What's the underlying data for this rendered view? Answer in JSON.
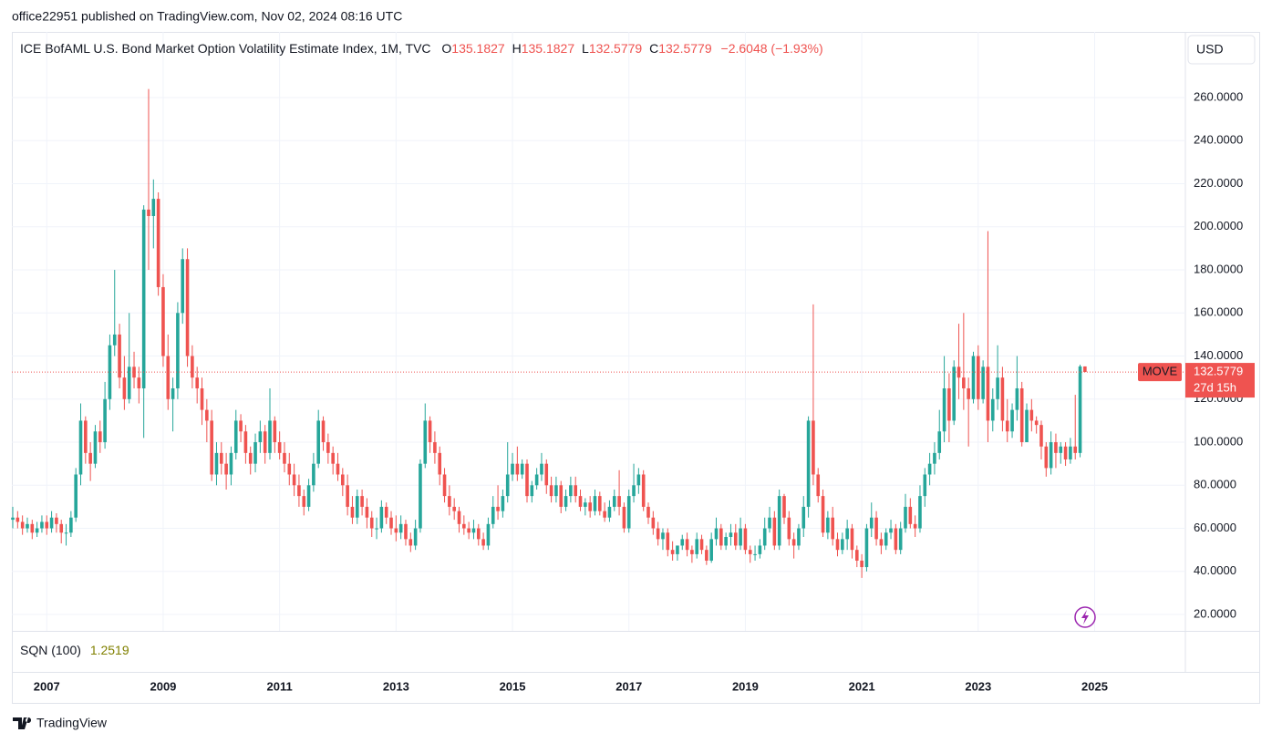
{
  "header": {
    "published": "office22951 published on TradingView.com, Nov 02, 2024 08:16 UTC"
  },
  "footer": {
    "brand": "TradingView"
  },
  "currency": "USD",
  "chart_data": {
    "type": "candlestick",
    "title": "ICE BofAML U.S. Bond Market Option Volatility Estimate Index, 1M, TVC",
    "ohlc_labels": [
      "O",
      "H",
      "L",
      "C"
    ],
    "change": "−2.6048 (−1.93%)",
    "symbol_tag": "MOVE",
    "countdown": "27d 15h",
    "up_color": "#26a69a",
    "down_color": "#ef5350",
    "grid": true,
    "series": {
      "name": "MOVE",
      "open": [
        64,
        65,
        63,
        60,
        62,
        58,
        60,
        63,
        60,
        65,
        62,
        58,
        58,
        65,
        85,
        110,
        95,
        90,
        105,
        100,
        120,
        145,
        150,
        130,
        120,
        135,
        130,
        125,
        208,
        205,
        213,
        172,
        140,
        120,
        125,
        160,
        185,
        140,
        130,
        125,
        115,
        110,
        85,
        95,
        90,
        85,
        95,
        110,
        105,
        95,
        90,
        100,
        105,
        95,
        110,
        100,
        95,
        90,
        85,
        80,
        75,
        70,
        80,
        90,
        110,
        100,
        95,
        90,
        85,
        80,
        70,
        65,
        75,
        70,
        65,
        60,
        60,
        70,
        65,
        60,
        58,
        62,
        55,
        52,
        60,
        90,
        110,
        100,
        95,
        85,
        75,
        70,
        68,
        62,
        60,
        58,
        60,
        55,
        52,
        62,
        70,
        68,
        75,
        85,
        90,
        85,
        90,
        75,
        80,
        85,
        90,
        80,
        75,
        80,
        70,
        75,
        80,
        75,
        70,
        72,
        68,
        75,
        68,
        65,
        70,
        75,
        70,
        60,
        75,
        80,
        85,
        70,
        65,
        60,
        55,
        58,
        50,
        48,
        52,
        55,
        50,
        48,
        55,
        50,
        45,
        55,
        60,
        52,
        56,
        58,
        52,
        60,
        50,
        48,
        48,
        52,
        60,
        65,
        52,
        75,
        65,
        55,
        52,
        60,
        70,
        110,
        85,
        75,
        58,
        65,
        55,
        50,
        55,
        60,
        50,
        45,
        42,
        60,
        65,
        55,
        52,
        58,
        60,
        50,
        60,
        70,
        62,
        60,
        75,
        85,
        90,
        95,
        105,
        125,
        110,
        135,
        130,
        125,
        120,
        140,
        120,
        135,
        110,
        120,
        130,
        110,
        105,
        115,
        125,
        100,
        115,
        110,
        108,
        98,
        88,
        100,
        95,
        98,
        92,
        98,
        95,
        135.1827
      ],
      "high": [
        70,
        68,
        66,
        65,
        64,
        63,
        66,
        66,
        68,
        67,
        64,
        62,
        68,
        88,
        118,
        112,
        100,
        108,
        110,
        128,
        150,
        180,
        155,
        140,
        160,
        142,
        135,
        210,
        264,
        222,
        216,
        178,
        150,
        130,
        165,
        190,
        190,
        145,
        135,
        130,
        120,
        115,
        100,
        100,
        95,
        98,
        115,
        113,
        108,
        98,
        104,
        110,
        108,
        125,
        112,
        105,
        100,
        95,
        90,
        85,
        78,
        83,
        95,
        115,
        112,
        104,
        98,
        95,
        88,
        85,
        75,
        78,
        78,
        74,
        68,
        65,
        73,
        72,
        68,
        66,
        66,
        64,
        58,
        64,
        92,
        118,
        112,
        105,
        98,
        88,
        80,
        74,
        70,
        66,
        63,
        64,
        62,
        58,
        65,
        75,
        80,
        78,
        100,
        95,
        98,
        92,
        92,
        82,
        88,
        95,
        92,
        84,
        84,
        82,
        78,
        84,
        84,
        78,
        74,
        75,
        78,
        77,
        72,
        73,
        78,
        87,
        72,
        78,
        90,
        88,
        87,
        72,
        68,
        63,
        60,
        60,
        54,
        52,
        57,
        58,
        52,
        58,
        57,
        52,
        58,
        65,
        62,
        58,
        62,
        62,
        65,
        62,
        52,
        52,
        55,
        65,
        70,
        68,
        78,
        76,
        68,
        58,
        62,
        75,
        112,
        164,
        88,
        78,
        68,
        70,
        58,
        58,
        64,
        62,
        52,
        48,
        62,
        72,
        68,
        58,
        60,
        64,
        62,
        63,
        76,
        74,
        66,
        80,
        88,
        95,
        100,
        115,
        140,
        132,
        138,
        155,
        160,
        130,
        142,
        145,
        138,
        198,
        125,
        145,
        135,
        120,
        118,
        140,
        128,
        118,
        120,
        112,
        110,
        100,
        105,
        104,
        100,
        100,
        102,
        122,
        136,
        135.1827
      ],
      "low": [
        60,
        60,
        57,
        58,
        55,
        56,
        58,
        57,
        58,
        58,
        53,
        52,
        56,
        63,
        80,
        90,
        82,
        88,
        95,
        97,
        115,
        140,
        125,
        115,
        118,
        125,
        118,
        102,
        180,
        190,
        168,
        135,
        115,
        105,
        120,
        155,
        135,
        125,
        118,
        108,
        100,
        82,
        80,
        85,
        78,
        80,
        92,
        100,
        90,
        85,
        86,
        95,
        90,
        92,
        95,
        92,
        86,
        80,
        75,
        70,
        66,
        68,
        77,
        88,
        96,
        90,
        85,
        82,
        75,
        66,
        62,
        62,
        66,
        60,
        56,
        55,
        58,
        62,
        57,
        54,
        55,
        52,
        49,
        50,
        58,
        88,
        95,
        90,
        80,
        72,
        66,
        64,
        58,
        57,
        55,
        55,
        52,
        50,
        50,
        60,
        64,
        65,
        72,
        82,
        82,
        83,
        72,
        72,
        78,
        82,
        76,
        72,
        72,
        67,
        68,
        72,
        72,
        68,
        66,
        65,
        66,
        66,
        63,
        63,
        68,
        66,
        58,
        58,
        72,
        76,
        68,
        62,
        57,
        52,
        50,
        47,
        45,
        45,
        50,
        47,
        44,
        46,
        48,
        43,
        44,
        52,
        50,
        50,
        52,
        50,
        50,
        48,
        44,
        45,
        46,
        50,
        58,
        50,
        50,
        62,
        52,
        46,
        50,
        56,
        65,
        80,
        72,
        56,
        55,
        52,
        47,
        48,
        50,
        46,
        42,
        37,
        40,
        56,
        52,
        48,
        50,
        55,
        48,
        48,
        58,
        60,
        56,
        58,
        70,
        80,
        85,
        92,
        100,
        100,
        108,
        120,
        115,
        98,
        118,
        115,
        118,
        100,
        105,
        115,
        105,
        100,
        102,
        110,
        98,
        102,
        105,
        104,
        92,
        84,
        85,
        88,
        90,
        89,
        90,
        92,
        93,
        132.5779
      ],
      "close": [
        65,
        63,
        60,
        62,
        58,
        60,
        63,
        60,
        65,
        62,
        58,
        58,
        65,
        85,
        110,
        95,
        90,
        105,
        100,
        120,
        145,
        150,
        130,
        120,
        135,
        130,
        125,
        208,
        205,
        213,
        172,
        140,
        120,
        125,
        160,
        185,
        140,
        130,
        125,
        115,
        110,
        85,
        95,
        90,
        85,
        95,
        110,
        105,
        95,
        90,
        100,
        105,
        95,
        110,
        100,
        95,
        90,
        85,
        80,
        75,
        70,
        80,
        90,
        110,
        100,
        95,
        90,
        85,
        80,
        70,
        65,
        75,
        70,
        65,
        60,
        60,
        70,
        65,
        60,
        58,
        62,
        55,
        52,
        60,
        90,
        110,
        100,
        95,
        85,
        75,
        70,
        68,
        62,
        60,
        58,
        60,
        55,
        52,
        62,
        70,
        68,
        75,
        85,
        90,
        85,
        90,
        75,
        80,
        85,
        90,
        80,
        75,
        80,
        70,
        75,
        80,
        75,
        70,
        72,
        68,
        75,
        68,
        65,
        70,
        75,
        70,
        60,
        75,
        80,
        85,
        70,
        65,
        60,
        55,
        58,
        50,
        48,
        52,
        55,
        50,
        48,
        55,
        50,
        45,
        55,
        60,
        52,
        56,
        58,
        52,
        60,
        50,
        48,
        48,
        52,
        60,
        65,
        52,
        75,
        65,
        55,
        52,
        60,
        70,
        110,
        85,
        75,
        58,
        65,
        55,
        50,
        55,
        60,
        50,
        45,
        42,
        60,
        65,
        55,
        52,
        58,
        60,
        50,
        60,
        70,
        62,
        60,
        75,
        85,
        90,
        95,
        105,
        125,
        110,
        135,
        130,
        125,
        120,
        140,
        120,
        135,
        110,
        120,
        130,
        110,
        105,
        115,
        125,
        100,
        115,
        110,
        108,
        98,
        88,
        100,
        95,
        98,
        92,
        98,
        95,
        135.1827,
        132.5779
      ]
    },
    "xlim": [
      -0.19,
      241.7
    ],
    "xticks": [
      {
        "value": 7,
        "label": "2007"
      },
      {
        "value": 31,
        "label": "2009"
      },
      {
        "value": 55,
        "label": "2011"
      },
      {
        "value": 79,
        "label": "2013"
      },
      {
        "value": 103,
        "label": "2015"
      },
      {
        "value": 127,
        "label": "2017"
      },
      {
        "value": 151,
        "label": "2019"
      },
      {
        "value": 175,
        "label": "2021"
      },
      {
        "value": 199,
        "label": "2023"
      },
      {
        "value": 223,
        "label": "2025"
      }
    ],
    "ylim": [
      12.4,
      290.5
    ],
    "yticks": [
      {
        "value": 20,
        "label": "20.0000"
      },
      {
        "value": 40,
        "label": "40.0000"
      },
      {
        "value": 60,
        "label": "60.0000"
      },
      {
        "value": 80,
        "label": "80.0000"
      },
      {
        "value": 100,
        "label": "100.0000"
      },
      {
        "value": 120,
        "label": "120.0000"
      },
      {
        "value": 140,
        "label": "140.0000"
      },
      {
        "value": 160,
        "label": "160.0000"
      },
      {
        "value": 180,
        "label": "180.0000"
      },
      {
        "value": 200,
        "label": "200.0000"
      },
      {
        "value": 220,
        "label": "220.0000"
      },
      {
        "value": 240,
        "label": "240.0000"
      },
      {
        "value": 260,
        "label": "260.0000"
      }
    ],
    "indicator": {
      "name": "SQN (100)",
      "value": "1.2519"
    }
  }
}
